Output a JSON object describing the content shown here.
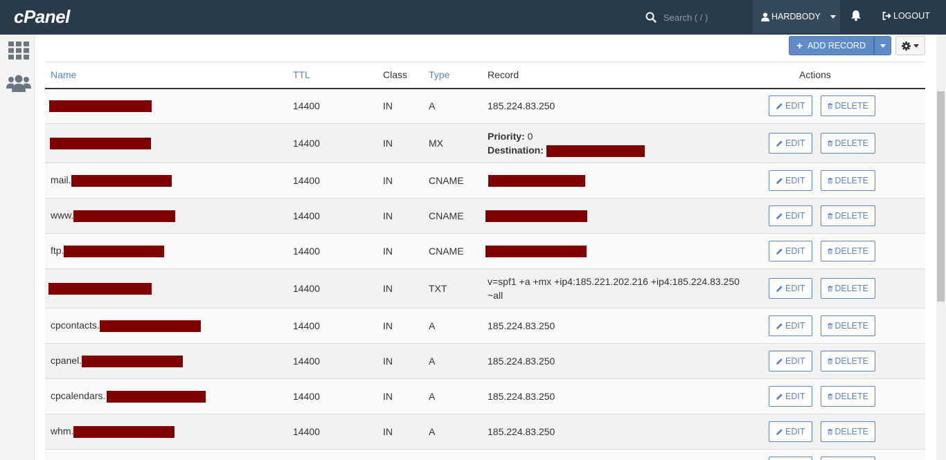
{
  "app": {
    "logo": "cPanel",
    "search_placeholder": "Search ( / )",
    "username": "HARDBODY",
    "logout_label": "LOGOUT"
  },
  "toolbar": {
    "add_record_label": "ADD RECORD"
  },
  "table": {
    "headers": {
      "name": "Name",
      "ttl": "TTL",
      "class": "Class",
      "type": "Type",
      "record": "Record",
      "actions": "Actions"
    },
    "edit_label": "EDIT",
    "delete_label": "DELETE",
    "rows": [
      {
        "name_prefix": "",
        "ttl": "14400",
        "class": "IN",
        "type": "A",
        "record": "185.224.83.250"
      },
      {
        "name_prefix": "",
        "ttl": "14400",
        "class": "IN",
        "type": "MX",
        "priority_label": "Priority:",
        "priority_value": "0",
        "destination_label": "Destination:"
      },
      {
        "name_prefix": "mail.",
        "ttl": "14400",
        "class": "IN",
        "type": "CNAME"
      },
      {
        "name_prefix": "www.",
        "ttl": "14400",
        "class": "IN",
        "type": "CNAME"
      },
      {
        "name_prefix": "ftp.",
        "ttl": "14400",
        "class": "IN",
        "type": "CNAME"
      },
      {
        "name_prefix": "",
        "ttl": "14400",
        "class": "IN",
        "type": "TXT",
        "record": "v=spf1 +a +mx +ip4:185.221.202.216 +ip4:185.224.83.250 ~all"
      },
      {
        "name_prefix": "cpcontacts.",
        "ttl": "14400",
        "class": "IN",
        "type": "A",
        "record": "185.224.83.250"
      },
      {
        "name_prefix": "cpanel.",
        "ttl": "14400",
        "class": "IN",
        "type": "A",
        "record": "185.224.83.250"
      },
      {
        "name_prefix": "cpcalendars.",
        "ttl": "14400",
        "class": "IN",
        "type": "A",
        "record": "185.224.83.250"
      },
      {
        "name_prefix": "whm.",
        "ttl": "14400",
        "class": "IN",
        "type": "A",
        "record": "185.224.83.250"
      }
    ]
  },
  "colors": {
    "topbar": "#293a4a",
    "accent": "#5b86c3",
    "redaction": "#800000"
  }
}
